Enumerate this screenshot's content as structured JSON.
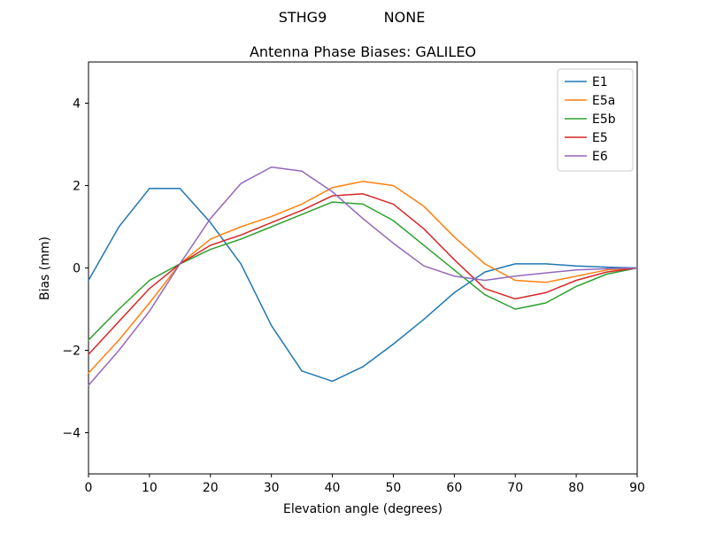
{
  "suptitle_left": "STHG9",
  "suptitle_right": "NONE",
  "chart_data": {
    "type": "line",
    "title": "Antenna Phase Biases: GALILEO",
    "xlabel": "Elevation angle (degrees)",
    "ylabel": "Bias (mm)",
    "xlim": [
      0,
      90
    ],
    "ylim": [
      -5,
      5
    ],
    "xticks": [
      0,
      10,
      20,
      30,
      40,
      50,
      60,
      70,
      80,
      90
    ],
    "yticks": [
      -4,
      -2,
      0,
      2,
      4
    ],
    "grid": false,
    "legend_position": "upper right",
    "x": [
      0,
      5,
      10,
      15,
      20,
      25,
      30,
      35,
      40,
      45,
      50,
      55,
      60,
      65,
      70,
      75,
      80,
      85,
      90
    ],
    "series": [
      {
        "name": "E1",
        "color": "#1f77b4",
        "values": [
          -0.3,
          1.0,
          1.93,
          1.93,
          1.1,
          0.1,
          -1.4,
          -2.5,
          -2.75,
          -2.4,
          -1.85,
          -1.25,
          -0.6,
          -0.1,
          0.1,
          0.1,
          0.05,
          0.02,
          0.0
        ]
      },
      {
        "name": "E5a",
        "color": "#ff7f0e",
        "values": [
          -2.55,
          -1.75,
          -0.85,
          0.1,
          0.7,
          1.0,
          1.25,
          1.55,
          1.95,
          2.1,
          2.0,
          1.5,
          0.75,
          0.1,
          -0.3,
          -0.35,
          -0.2,
          -0.05,
          0.0
        ]
      },
      {
        "name": "E5b",
        "color": "#2ca02c",
        "values": [
          -1.75,
          -1.0,
          -0.3,
          0.1,
          0.45,
          0.7,
          1.0,
          1.3,
          1.6,
          1.55,
          1.15,
          0.55,
          -0.05,
          -0.65,
          -1.0,
          -0.85,
          -0.45,
          -0.15,
          0.0
        ]
      },
      {
        "name": "E5",
        "color": "#d62728",
        "values": [
          -2.1,
          -1.3,
          -0.5,
          0.1,
          0.55,
          0.8,
          1.1,
          1.4,
          1.75,
          1.8,
          1.55,
          0.95,
          0.2,
          -0.5,
          -0.75,
          -0.6,
          -0.3,
          -0.1,
          0.0
        ]
      },
      {
        "name": "E6",
        "color": "#9467bd",
        "values": [
          -2.85,
          -2.0,
          -1.05,
          0.1,
          1.2,
          2.05,
          2.45,
          2.35,
          1.85,
          1.2,
          0.6,
          0.05,
          -0.2,
          -0.3,
          -0.2,
          -0.12,
          -0.05,
          -0.02,
          0.0
        ]
      }
    ]
  }
}
